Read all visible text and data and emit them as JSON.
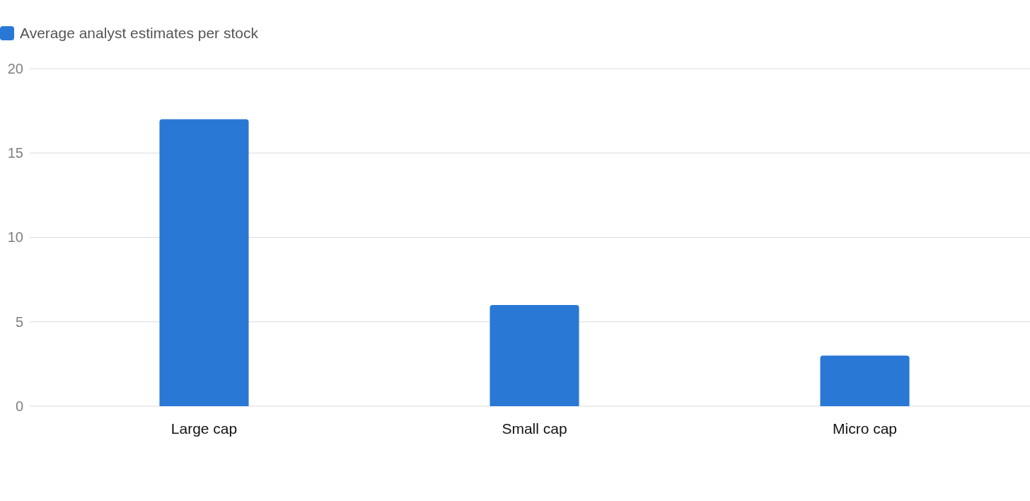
{
  "chart_data": {
    "type": "bar",
    "categories": [
      "Large cap",
      "Small cap",
      "Micro cap"
    ],
    "series": [
      {
        "name": "Average analyst estimates per stock",
        "color": "#2a78d6",
        "values": [
          17,
          6,
          3
        ]
      }
    ],
    "ylim": [
      0,
      20
    ],
    "yticks": [
      0,
      5,
      10,
      15,
      20
    ],
    "grid": "y",
    "legend": "top left"
  }
}
